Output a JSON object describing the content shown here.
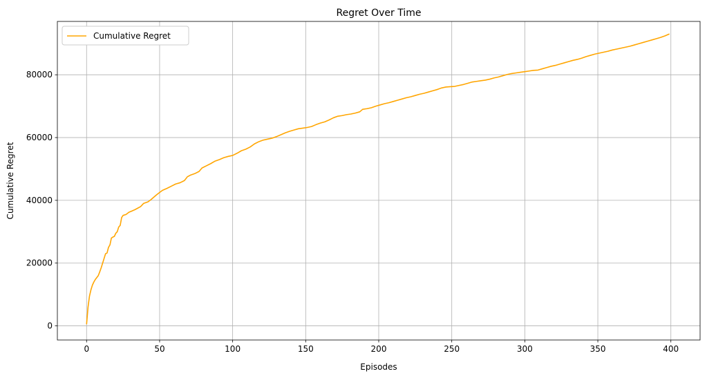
{
  "chart_data": {
    "type": "line",
    "title": "Regret Over Time",
    "xlabel": "Episodes",
    "ylabel": "Cumulative Regret",
    "xlim": [
      -20,
      420
    ],
    "ylim": [
      -4500,
      97000
    ],
    "xticks": [
      0,
      50,
      100,
      150,
      200,
      250,
      300,
      350,
      400
    ],
    "yticks": [
      0,
      20000,
      40000,
      60000,
      80000
    ],
    "grid": true,
    "legend_position": "top-left",
    "series": [
      {
        "name": "Cumulative Regret",
        "color": "#ffa500",
        "points": [
          [
            0,
            500
          ],
          [
            1,
            6000
          ],
          [
            2,
            9500
          ],
          [
            3,
            11500
          ],
          [
            4,
            13000
          ],
          [
            5,
            14000
          ],
          [
            6,
            14800
          ],
          [
            7,
            15400
          ],
          [
            8,
            16000
          ],
          [
            9,
            17200
          ],
          [
            10,
            18500
          ],
          [
            11,
            20000
          ],
          [
            12,
            21500
          ],
          [
            13,
            23000
          ],
          [
            14,
            23200
          ],
          [
            15,
            25000
          ],
          [
            16,
            25800
          ],
          [
            17,
            28000
          ],
          [
            18,
            28300
          ],
          [
            19,
            28500
          ],
          [
            20,
            29500
          ],
          [
            21,
            30000
          ],
          [
            22,
            31500
          ],
          [
            23,
            32000
          ],
          [
            24,
            34500
          ],
          [
            25,
            35200
          ],
          [
            27,
            35500
          ],
          [
            29,
            36200
          ],
          [
            31,
            36600
          ],
          [
            33,
            37000
          ],
          [
            35,
            37500
          ],
          [
            37,
            38000
          ],
          [
            39,
            39000
          ],
          [
            42,
            39500
          ],
          [
            44,
            40200
          ],
          [
            46,
            41000
          ],
          [
            48,
            41800
          ],
          [
            50,
            42500
          ],
          [
            52,
            43200
          ],
          [
            55,
            43800
          ],
          [
            58,
            44500
          ],
          [
            61,
            45200
          ],
          [
            64,
            45600
          ],
          [
            67,
            46300
          ],
          [
            69,
            47500
          ],
          [
            71,
            48000
          ],
          [
            74,
            48500
          ],
          [
            77,
            49200
          ],
          [
            79,
            50300
          ],
          [
            82,
            51000
          ],
          [
            85,
            51700
          ],
          [
            88,
            52500
          ],
          [
            91,
            53000
          ],
          [
            94,
            53600
          ],
          [
            97,
            54000
          ],
          [
            100,
            54300
          ],
          [
            103,
            55000
          ],
          [
            106,
            55800
          ],
          [
            109,
            56300
          ],
          [
            112,
            57000
          ],
          [
            115,
            58000
          ],
          [
            118,
            58700
          ],
          [
            121,
            59200
          ],
          [
            124,
            59500
          ],
          [
            127,
            59800
          ],
          [
            130,
            60300
          ],
          [
            133,
            60900
          ],
          [
            136,
            61500
          ],
          [
            139,
            62000
          ],
          [
            142,
            62400
          ],
          [
            145,
            62800
          ],
          [
            148,
            63000
          ],
          [
            151,
            63200
          ],
          [
            154,
            63500
          ],
          [
            157,
            64100
          ],
          [
            160,
            64600
          ],
          [
            163,
            65000
          ],
          [
            166,
            65600
          ],
          [
            169,
            66300
          ],
          [
            172,
            66800
          ],
          [
            175,
            67000
          ],
          [
            178,
            67300
          ],
          [
            181,
            67500
          ],
          [
            184,
            67800
          ],
          [
            187,
            68200
          ],
          [
            189,
            69000
          ],
          [
            192,
            69200
          ],
          [
            195,
            69500
          ],
          [
            198,
            70000
          ],
          [
            201,
            70400
          ],
          [
            204,
            70800
          ],
          [
            207,
            71100
          ],
          [
            210,
            71500
          ],
          [
            213,
            71900
          ],
          [
            216,
            72300
          ],
          [
            219,
            72700
          ],
          [
            222,
            73000
          ],
          [
            225,
            73400
          ],
          [
            228,
            73800
          ],
          [
            231,
            74100
          ],
          [
            234,
            74500
          ],
          [
            237,
            74900
          ],
          [
            240,
            75300
          ],
          [
            243,
            75800
          ],
          [
            246,
            76100
          ],
          [
            249,
            76200
          ],
          [
            252,
            76300
          ],
          [
            255,
            76600
          ],
          [
            258,
            76900
          ],
          [
            261,
            77300
          ],
          [
            264,
            77700
          ],
          [
            267,
            77900
          ],
          [
            270,
            78100
          ],
          [
            273,
            78300
          ],
          [
            276,
            78600
          ],
          [
            279,
            79000
          ],
          [
            282,
            79300
          ],
          [
            285,
            79700
          ],
          [
            288,
            80100
          ],
          [
            291,
            80400
          ],
          [
            294,
            80600
          ],
          [
            297,
            80800
          ],
          [
            300,
            81000
          ],
          [
            303,
            81200
          ],
          [
            306,
            81400
          ],
          [
            309,
            81500
          ],
          [
            312,
            81900
          ],
          [
            315,
            82300
          ],
          [
            318,
            82700
          ],
          [
            321,
            83000
          ],
          [
            324,
            83400
          ],
          [
            327,
            83800
          ],
          [
            330,
            84200
          ],
          [
            333,
            84600
          ],
          [
            336,
            84900
          ],
          [
            339,
            85300
          ],
          [
            342,
            85800
          ],
          [
            345,
            86200
          ],
          [
            348,
            86600
          ],
          [
            351,
            86900
          ],
          [
            354,
            87200
          ],
          [
            357,
            87500
          ],
          [
            360,
            87900
          ],
          [
            363,
            88200
          ],
          [
            366,
            88500
          ],
          [
            369,
            88800
          ],
          [
            372,
            89100
          ],
          [
            375,
            89500
          ],
          [
            378,
            89900
          ],
          [
            381,
            90300
          ],
          [
            384,
            90700
          ],
          [
            387,
            91100
          ],
          [
            390,
            91500
          ],
          [
            393,
            91900
          ],
          [
            396,
            92400
          ],
          [
            399,
            93000
          ]
        ]
      }
    ]
  }
}
